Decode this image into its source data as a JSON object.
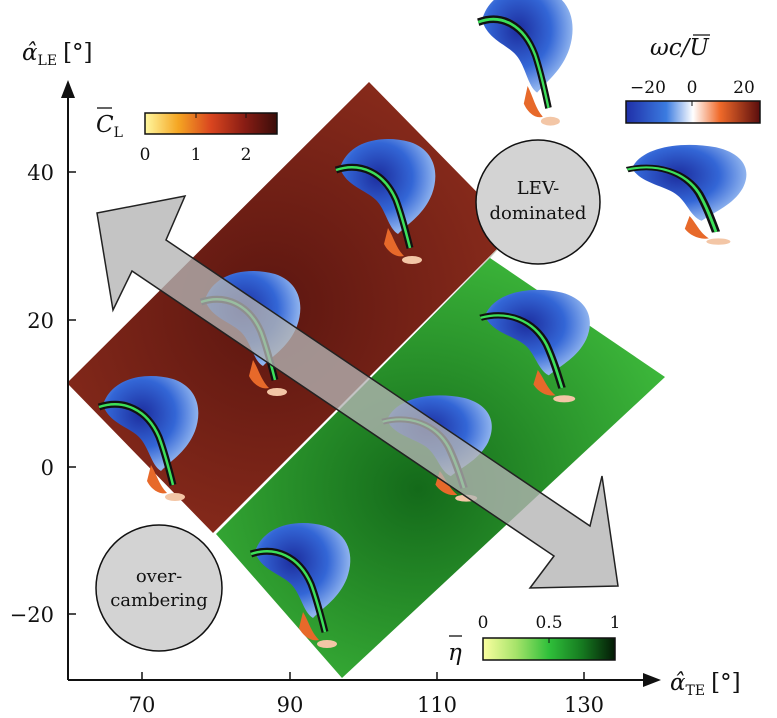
{
  "axes": {
    "x_label": "α̂",
    "x_label_sub": "TE",
    "x_label_unit": "[°]",
    "y_label": "α̂",
    "y_label_sub": "LE",
    "y_label_unit": "[°]",
    "x_ticks": [
      "70",
      "90",
      "110",
      "130"
    ],
    "y_ticks": [
      "40",
      "20",
      "0",
      "−20"
    ]
  },
  "colorbars": {
    "lift": {
      "label": "C",
      "label_sub": "L",
      "ticks": [
        "0",
        "1",
        "2"
      ],
      "colors": [
        "#fff8a0",
        "#f5a623",
        "#d9451f",
        "#8a1d14",
        "#3a0d0a"
      ]
    },
    "efficiency": {
      "label": "η",
      "ticks": [
        "0",
        "0.5",
        "1"
      ],
      "colors": [
        "#fbffa0",
        "#a6e36a",
        "#2fbf3a",
        "#167a20",
        "#041a06"
      ]
    },
    "vorticity": {
      "label": "ωc/U",
      "ticks": [
        "−20",
        "0",
        "20"
      ],
      "colors": [
        "#1f2fa8",
        "#3b7be0",
        "#ffffff",
        "#f06a2a",
        "#5a0d0d"
      ]
    }
  },
  "regions": {
    "lev": {
      "line1": "LEV-",
      "line2": "dominated"
    },
    "over": {
      "line1": "over-",
      "line2": "cambering"
    }
  },
  "colors": {
    "lift_region": "#6e1e17",
    "lift_region_light": "#8b2c1c",
    "eff_region": "#2ca42f",
    "eff_region_dark": "#166a1c",
    "arrow": "#b4b4b4",
    "bubble": "#d3d3d3",
    "chord": "#3de05a"
  }
}
